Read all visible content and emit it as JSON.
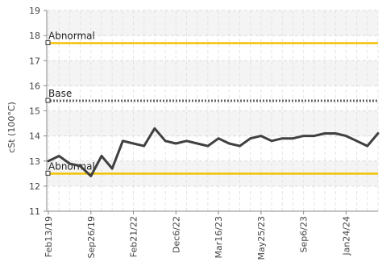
{
  "chart_data": {
    "type": "line",
    "title": "",
    "xlabel": "",
    "ylabel": "cSt (100°C)",
    "ylim": [
      11,
      19
    ],
    "yticks": [
      11,
      12,
      13,
      14,
      15,
      16,
      17,
      18,
      19
    ],
    "grid": true,
    "xtick_labels": [
      "Feb13/19",
      "Sep26/19",
      "Feb21/22",
      "Dec6/22",
      "Mar16/23",
      "May25/23",
      "Sep6/23",
      "Jan24/24"
    ],
    "series": [
      {
        "values": [
          13.0,
          13.2,
          12.9,
          12.8,
          12.4,
          13.2,
          12.7,
          13.8,
          13.7,
          13.6,
          14.3,
          13.8,
          13.7,
          13.8,
          13.7,
          13.6,
          13.9,
          13.7,
          13.6,
          13.9,
          14.0,
          13.8,
          13.9,
          13.9,
          14.0,
          14.0,
          14.1,
          14.1,
          14.0,
          13.8,
          13.6,
          14.1
        ]
      }
    ],
    "reference_lines": [
      {
        "label": "Abnormal",
        "value": 17.7,
        "color": "#f2c200",
        "style": "solid"
      },
      {
        "label": "Base",
        "value": 15.4,
        "color": "#666666",
        "style": "dotted"
      },
      {
        "label": "Abnormal",
        "value": 12.5,
        "color": "#f2c200",
        "style": "solid"
      }
    ],
    "colors": {
      "series": "#404040"
    }
  }
}
